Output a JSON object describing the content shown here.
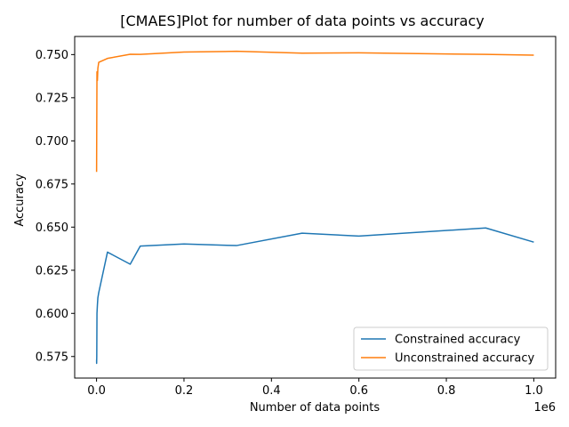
{
  "chart_data": {
    "type": "line",
    "title": "[CMAES]Plot for number of data points vs accuracy",
    "xlabel": "Number of data points",
    "ylabel": "Accuracy",
    "x_offset_label": "1e6",
    "xlim": [
      -0.05,
      1.05
    ],
    "ylim": [
      0.5625,
      0.7605
    ],
    "x_ticks": [
      0.0,
      0.2,
      0.4,
      0.6,
      0.8,
      1.0
    ],
    "x_tick_labels": [
      "0.0",
      "0.2",
      "0.4",
      "0.6",
      "0.8",
      "1.0"
    ],
    "y_ticks": [
      0.575,
      0.6,
      0.625,
      0.65,
      0.675,
      0.7,
      0.725,
      0.75
    ],
    "y_tick_labels": [
      "0.575",
      "0.600",
      "0.625",
      "0.650",
      "0.675",
      "0.700",
      "0.725",
      "0.750"
    ],
    "grid": false,
    "legend_position": "lower-right",
    "series": [
      {
        "name": "Constrained accuracy",
        "color": "#1f77b4",
        "x": [
          0.0001,
          0.0002,
          0.0005,
          0.001,
          0.002,
          0.003,
          0.005,
          0.025,
          0.077,
          0.1,
          0.2,
          0.32,
          0.47,
          0.6,
          0.89,
          1.0
        ],
        "y": [
          0.573,
          0.571,
          0.575,
          0.6,
          0.605,
          0.609,
          0.612,
          0.6355,
          0.6285,
          0.639,
          0.6402,
          0.6393,
          0.6465,
          0.6448,
          0.6495,
          0.6413
        ]
      },
      {
        "name": "Unconstrained accuracy",
        "color": "#ff7f0e",
        "x": [
          0.0001,
          0.0002,
          0.0005,
          0.001,
          0.002,
          0.003,
          0.005,
          0.025,
          0.077,
          0.1,
          0.2,
          0.32,
          0.47,
          0.6,
          0.89,
          1.0
        ],
        "y": [
          0.682,
          0.69,
          0.71,
          0.74,
          0.735,
          0.742,
          0.7455,
          0.7478,
          0.7502,
          0.7501,
          0.7515,
          0.7519,
          0.7508,
          0.751,
          0.7501,
          0.7497
        ]
      }
    ]
  }
}
